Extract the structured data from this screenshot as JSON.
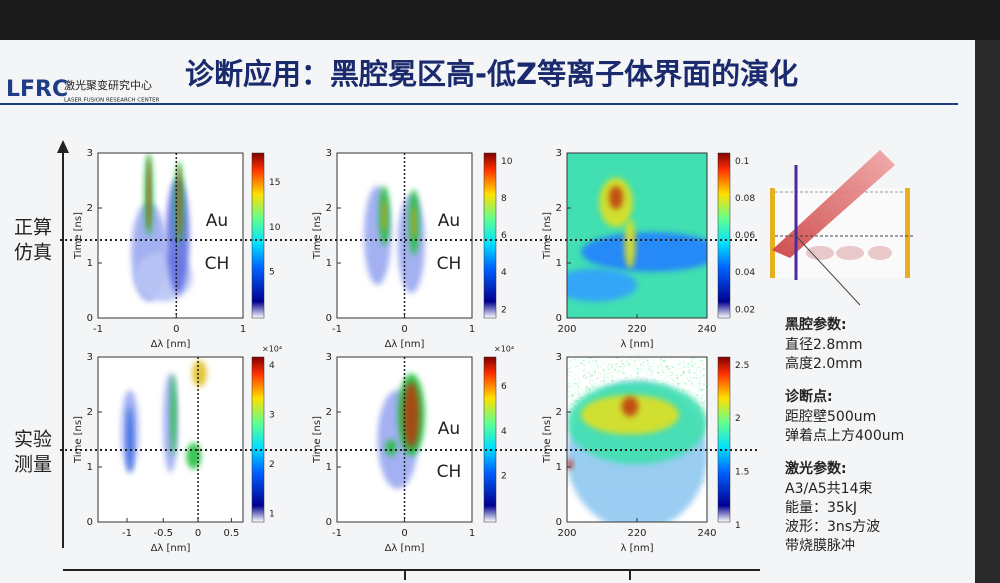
{
  "header": {
    "title": "诊断应用：黑腔冕区高-低Z等离子体界面的演化",
    "logo": "LFRC",
    "logo_cn": "激光聚变研究中心",
    "logo_en": "LASER FUSION RESEARCH CENTER"
  },
  "row_labels": [
    [
      "正算",
      "仿真"
    ],
    [
      "实验",
      "测量"
    ]
  ],
  "panels": [
    {
      "xlabel": "Δλ [nm]",
      "ylabel": "Time [ns]",
      "xticks": [
        "-1",
        "0",
        "1"
      ],
      "yticks": [
        "0",
        "1",
        "2",
        "3"
      ],
      "cbar_ticks": [
        "15",
        "10",
        "5"
      ],
      "labels": [
        "Au",
        "CH"
      ]
    },
    {
      "xlabel": "Δλ [nm]",
      "ylabel": "Time [ns]",
      "xticks": [
        "-1",
        "0",
        "1"
      ],
      "yticks": [
        "0",
        "1",
        "2",
        "3"
      ],
      "cbar_ticks": [
        "10",
        "8",
        "6",
        "4",
        "2"
      ],
      "labels": [
        "Au",
        "CH"
      ]
    },
    {
      "xlabel": "λ [nm]",
      "ylabel": "Time [ns]",
      "xticks": [
        "200",
        "220",
        "240"
      ],
      "yticks": [
        "0",
        "1",
        "2",
        "3"
      ],
      "cbar_ticks": [
        "0.1",
        "0.08",
        "0.06",
        "0.04",
        "0.02"
      ]
    },
    {
      "xlabel": "Δλ [nm]",
      "ylabel": "Time [ns]",
      "xticks": [
        "-1",
        "-0.5",
        "0",
        "0.5"
      ],
      "yticks": [
        "0",
        "1",
        "2",
        "3"
      ],
      "cbar_ticks": [
        "4",
        "3",
        "2",
        "1"
      ],
      "cbar_exp": "×10⁴"
    },
    {
      "xlabel": "Δλ [nm]",
      "ylabel": "Time [ns]",
      "xticks": [
        "-1",
        "0",
        "1"
      ],
      "yticks": [
        "0",
        "1",
        "2",
        "3"
      ],
      "cbar_ticks": [
        "6",
        "4",
        "2"
      ],
      "cbar_exp": "×10⁴",
      "labels": [
        "Au",
        "CH"
      ]
    },
    {
      "xlabel": "λ [nm]",
      "ylabel": "Time [ns]",
      "xticks": [
        "200",
        "220",
        "240"
      ],
      "yticks": [
        "0",
        "1",
        "2",
        "3"
      ],
      "cbar_ticks": [
        "2.5",
        "2",
        "1.5",
        "1"
      ]
    }
  ],
  "params": [
    {
      "heading": "黑腔参数:",
      "lines": [
        "直径2.8mm",
        "高度2.0mm"
      ]
    },
    {
      "heading": "诊断点:",
      "lines": [
        "距腔壁500um",
        "弹着点上方400um"
      ]
    },
    {
      "heading": "激光参数:",
      "lines": [
        "A3/A5共14束",
        "能量：35kJ",
        "波形：3ns方波",
        "带烧膜脉冲"
      ]
    }
  ]
}
